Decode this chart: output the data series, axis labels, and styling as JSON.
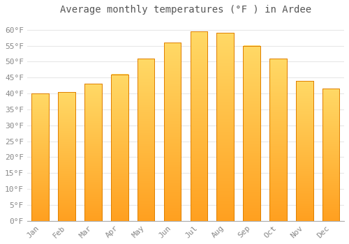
{
  "title": "Average monthly temperatures (°F ) in Ardee",
  "months": [
    "Jan",
    "Feb",
    "Mar",
    "Apr",
    "May",
    "Jun",
    "Jul",
    "Aug",
    "Sep",
    "Oct",
    "Nov",
    "Dec"
  ],
  "values": [
    40.0,
    40.5,
    43.0,
    46.0,
    51.0,
    56.0,
    59.5,
    59.0,
    55.0,
    51.0,
    44.0,
    41.5
  ],
  "bar_color_top": "#FFD966",
  "bar_color_bottom": "#FFA020",
  "bar_edge_color": "#E08000",
  "ylim": [
    0,
    63
  ],
  "yticks": [
    0,
    5,
    10,
    15,
    20,
    25,
    30,
    35,
    40,
    45,
    50,
    55,
    60
  ],
  "background_color": "#FFFFFF",
  "grid_color": "#E8E8E8",
  "title_fontsize": 10,
  "tick_fontsize": 8,
  "title_color": "#555555",
  "tick_color": "#888888"
}
